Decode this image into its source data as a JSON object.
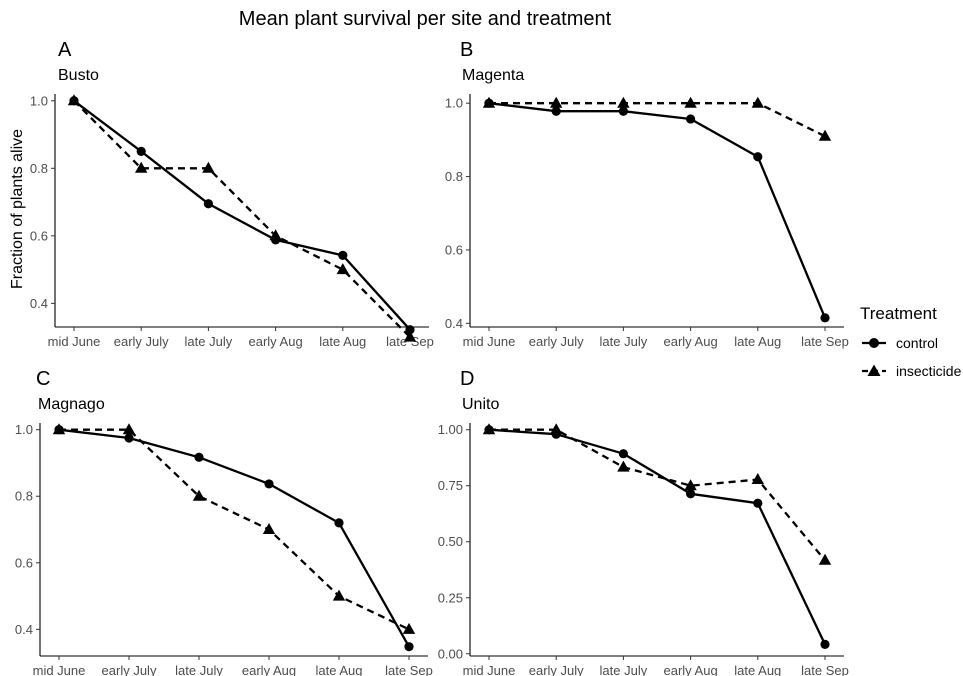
{
  "title": "Mean plant survival per site and treatment",
  "ylabel": "Fraction of plants alive",
  "legend": {
    "title": "Treatment",
    "placement": "right",
    "items": [
      {
        "label": "control",
        "marker": "circle",
        "linestyle": "solid"
      },
      {
        "label": "insecticide",
        "marker": "triangle",
        "linestyle": "dashed"
      }
    ]
  },
  "colors": {
    "line": "#000000",
    "axis": "#000000",
    "tick_text": "#4d4d4d"
  },
  "chart_data": [
    {
      "type": "line",
      "tag": "A",
      "title": "Busto",
      "categories": [
        "mid June",
        "early July",
        "late July",
        "early Aug",
        "late Aug",
        "late Sep"
      ],
      "ylim": [
        0.33,
        1.02
      ],
      "yticks": [
        0.4,
        0.6,
        0.8,
        1.0
      ],
      "ytick_labels": [
        "0.4",
        "0.6",
        "0.8",
        "1.0"
      ],
      "series": [
        {
          "name": "control",
          "values": [
            1.0,
            0.85,
            0.695,
            0.588,
            0.542,
            0.322
          ]
        },
        {
          "name": "insecticide",
          "values": [
            1.0,
            0.8,
            0.8,
            0.6,
            0.5,
            0.3
          ]
        }
      ]
    },
    {
      "type": "line",
      "tag": "B",
      "title": "Magenta",
      "categories": [
        "mid June",
        "early July",
        "late July",
        "early Aug",
        "late Aug",
        "late Sep"
      ],
      "ylim": [
        0.39,
        1.025
      ],
      "yticks": [
        0.4,
        0.6,
        0.8,
        1.0
      ],
      "ytick_labels": [
        "0.4",
        "0.6",
        "0.8",
        "1.0"
      ],
      "series": [
        {
          "name": "control",
          "values": [
            1.0,
            0.978,
            0.978,
            0.957,
            0.854,
            0.415
          ]
        },
        {
          "name": "insecticide",
          "values": [
            1.0,
            1.0,
            1.0,
            1.0,
            1.0,
            0.91
          ]
        }
      ]
    },
    {
      "type": "line",
      "tag": "C",
      "title": "Magnago",
      "categories": [
        "mid June",
        "early July",
        "late July",
        "early Aug",
        "late Aug",
        "late Sep"
      ],
      "ylim": [
        0.32,
        1.02
      ],
      "yticks": [
        0.4,
        0.6,
        0.8,
        1.0
      ],
      "ytick_labels": [
        "0.4",
        "0.6",
        "0.8",
        "1.0"
      ],
      "series": [
        {
          "name": "control",
          "values": [
            1.0,
            0.975,
            0.917,
            0.837,
            0.72,
            0.348
          ]
        },
        {
          "name": "insecticide",
          "values": [
            1.0,
            1.0,
            0.8,
            0.7,
            0.5,
            0.4
          ]
        }
      ]
    },
    {
      "type": "line",
      "tag": "D",
      "title": "Unito",
      "categories": [
        "mid June",
        "early July",
        "late July",
        "early Aug",
        "late Aug",
        "late Sep"
      ],
      "ylim": [
        -0.01,
        1.03
      ],
      "yticks": [
        0.0,
        0.25,
        0.5,
        0.75,
        1.0
      ],
      "ytick_labels": [
        "0.00",
        "0.25",
        "0.50",
        "0.75",
        "1.00"
      ],
      "series": [
        {
          "name": "control",
          "values": [
            1.0,
            0.98,
            0.893,
            0.714,
            0.672,
            0.042
          ]
        },
        {
          "name": "insecticide",
          "values": [
            1.0,
            1.0,
            0.833,
            0.75,
            0.778,
            0.417
          ]
        }
      ]
    }
  ]
}
